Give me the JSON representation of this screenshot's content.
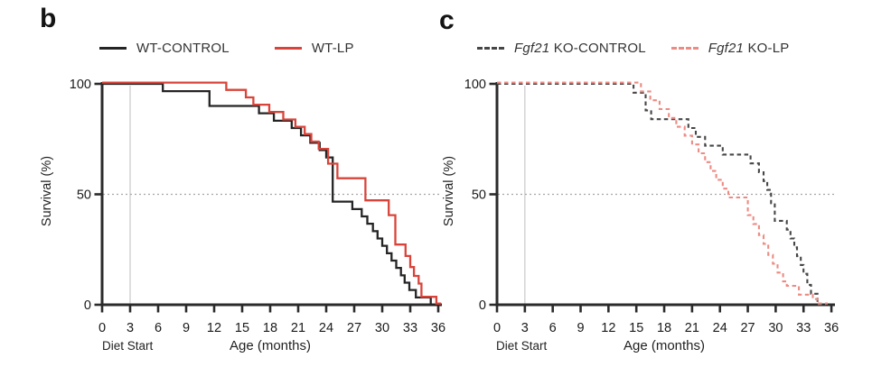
{
  "figure": {
    "background": "#ffffff"
  },
  "chart_data": [
    {
      "type": "line",
      "subtype": "kaplan-meier-step",
      "panel_label": "b",
      "ylabel": "Survival (%)",
      "xlabel": "Age (months)",
      "diet_start_label": "Diet Start",
      "diet_start_x": 3,
      "median_gridline_y": 50,
      "x_ticks": [
        0,
        3,
        6,
        9,
        12,
        15,
        18,
        21,
        24,
        27,
        30,
        33,
        36
      ],
      "y_ticks": [
        100,
        50,
        0
      ],
      "xlim": [
        0,
        36
      ],
      "ylim": [
        0,
        100
      ],
      "grid": "median-only",
      "legend_position": "top",
      "series": [
        {
          "name": "WT-CONTROL",
          "name_parts": [
            {
              "text": "WT-CONTROL",
              "italic": false
            }
          ],
          "color": "#242424",
          "dash": "solid",
          "points": [
            [
              0,
              100
            ],
            [
              6.5,
              96.7
            ],
            [
              11.5,
              90
            ],
            [
              16.8,
              86.7
            ],
            [
              18.4,
              83.3
            ],
            [
              20.3,
              80
            ],
            [
              21.3,
              76.7
            ],
            [
              22.3,
              73.3
            ],
            [
              23.3,
              70
            ],
            [
              24,
              66.7
            ],
            [
              24.7,
              46.7
            ],
            [
              26.8,
              43.3
            ],
            [
              27.8,
              40
            ],
            [
              28.4,
              36.7
            ],
            [
              29,
              33.3
            ],
            [
              29.5,
              30
            ],
            [
              30,
              26.7
            ],
            [
              30.5,
              23.3
            ],
            [
              31,
              20
            ],
            [
              31.5,
              16.7
            ],
            [
              32,
              13.3
            ],
            [
              32.4,
              10
            ],
            [
              32.9,
              6.7
            ],
            [
              33.6,
              3.3
            ],
            [
              35.2,
              0
            ]
          ],
          "end_month": 35.9
        },
        {
          "name": "WT-LP",
          "name_parts": [
            {
              "text": "WT-LP",
              "italic": false
            }
          ],
          "color": "#d8443a",
          "dash": "solid",
          "points": [
            [
              0,
              100
            ],
            [
              13.3,
              96.7
            ],
            [
              15.4,
              93.3
            ],
            [
              16.2,
              90
            ],
            [
              17.9,
              86.7
            ],
            [
              19.4,
              83.3
            ],
            [
              20.7,
              80
            ],
            [
              21.7,
              76.7
            ],
            [
              22.4,
              73.3
            ],
            [
              23.2,
              70
            ],
            [
              24.2,
              63.3
            ],
            [
              25.2,
              56.7
            ],
            [
              28.2,
              46.7
            ],
            [
              30.7,
              40
            ],
            [
              31.4,
              26.7
            ],
            [
              32.5,
              21.5
            ],
            [
              33,
              16.5
            ],
            [
              33.4,
              12.5
            ],
            [
              33.9,
              9
            ],
            [
              34.2,
              3
            ],
            [
              35.8,
              0
            ]
          ],
          "end_month": 36.3
        }
      ]
    },
    {
      "type": "line",
      "subtype": "kaplan-meier-step",
      "panel_label": "c",
      "ylabel": "Survival (%)",
      "xlabel": "Age (months)",
      "diet_start_label": "Diet Start",
      "diet_start_x": 3,
      "median_gridline_y": 50,
      "x_ticks": [
        0,
        3,
        6,
        9,
        12,
        15,
        18,
        21,
        24,
        27,
        30,
        33,
        36
      ],
      "y_ticks": [
        100,
        50,
        0
      ],
      "xlim": [
        0,
        36
      ],
      "ylim": [
        0,
        100
      ],
      "grid": "median-only",
      "legend_position": "top",
      "series": [
        {
          "name": "Fgf21 KO-CONTROL",
          "name_parts": [
            {
              "text": "Fgf21",
              "italic": true
            },
            {
              "text": " KO-CONTROL",
              "italic": false
            }
          ],
          "color": "#464646",
          "dash": "dashed",
          "points": [
            [
              0,
              100
            ],
            [
              14.7,
              96
            ],
            [
              16,
              88
            ],
            [
              16.6,
              84
            ],
            [
              20.6,
              80
            ],
            [
              21.4,
              76
            ],
            [
              22.4,
              72
            ],
            [
              24.3,
              68
            ],
            [
              27.3,
              64
            ],
            [
              28.2,
              60
            ],
            [
              28.7,
              56
            ],
            [
              29.1,
              52
            ],
            [
              29.5,
              46
            ],
            [
              29.9,
              38
            ],
            [
              31.2,
              34
            ],
            [
              31.6,
              30
            ],
            [
              32,
              26
            ],
            [
              32.3,
              22
            ],
            [
              32.7,
              18
            ],
            [
              33,
              14
            ],
            [
              33.4,
              9
            ],
            [
              33.8,
              5
            ],
            [
              34.5,
              0
            ]
          ],
          "end_month": 35.4
        },
        {
          "name": "Fgf21 KO-LP",
          "name_parts": [
            {
              "text": "Fgf21",
              "italic": true
            },
            {
              "text": " KO-LP",
              "italic": false
            }
          ],
          "color": "#ec8b83",
          "dash": "dashed",
          "points": [
            [
              0,
              100
            ],
            [
              15.5,
              96
            ],
            [
              16.5,
              92
            ],
            [
              17.5,
              88
            ],
            [
              18.5,
              84
            ],
            [
              19.3,
              80
            ],
            [
              20.2,
              76
            ],
            [
              21,
              72
            ],
            [
              21.7,
              68
            ],
            [
              22.4,
              64
            ],
            [
              23,
              60
            ],
            [
              23.6,
              56
            ],
            [
              24.3,
              52
            ],
            [
              24.9,
              48
            ],
            [
              27,
              40
            ],
            [
              27.6,
              36
            ],
            [
              28.2,
              31
            ],
            [
              28.7,
              27
            ],
            [
              29.2,
              22
            ],
            [
              29.7,
              18
            ],
            [
              30.2,
              14
            ],
            [
              30.8,
              10
            ],
            [
              31.2,
              8
            ],
            [
              32.5,
              4
            ],
            [
              34,
              2
            ],
            [
              34.5,
              0
            ]
          ],
          "end_month": 35.6
        }
      ]
    }
  ]
}
